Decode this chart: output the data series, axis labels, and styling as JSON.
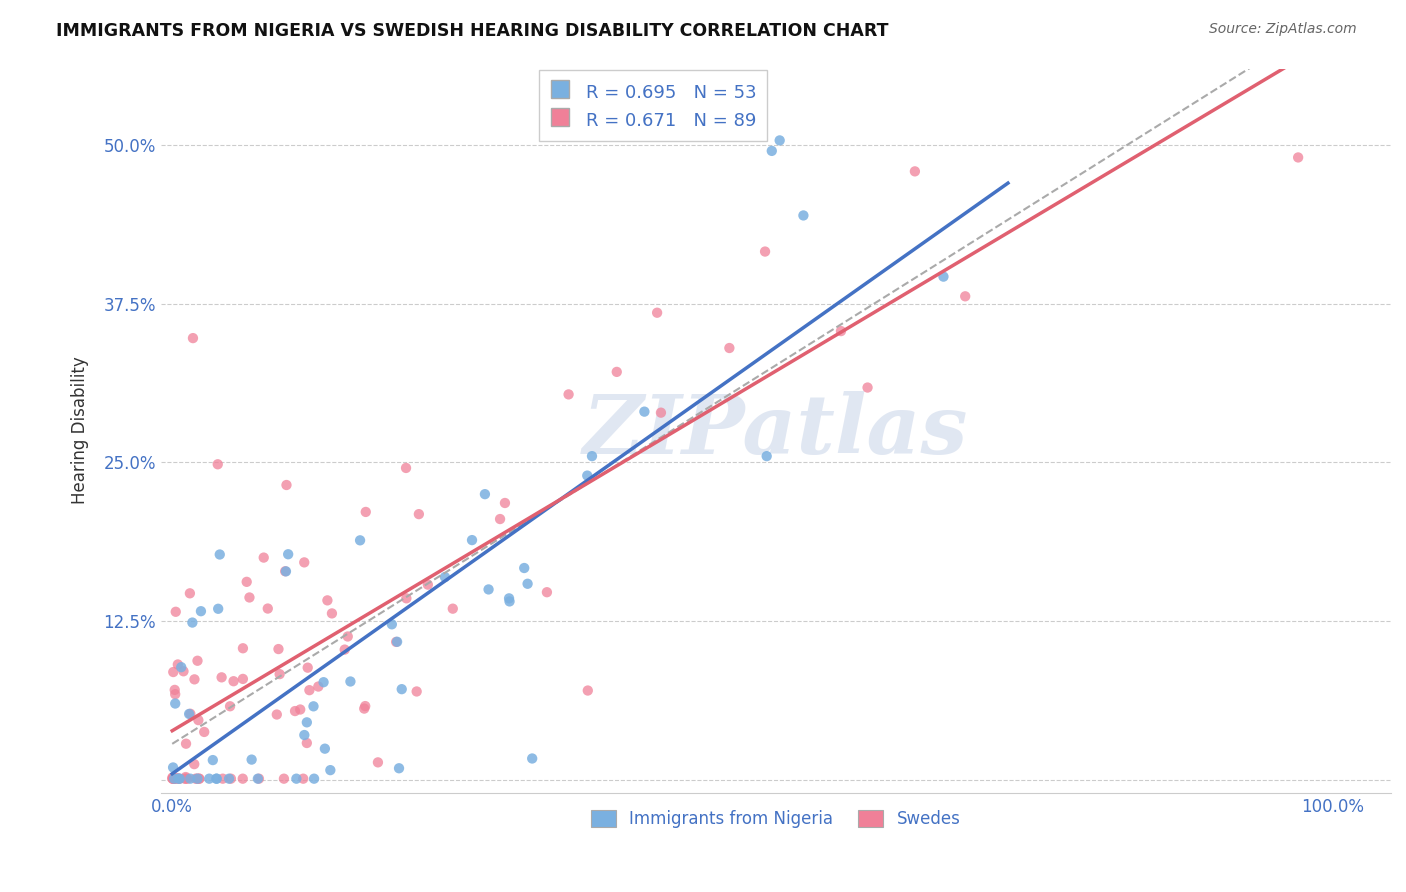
{
  "title": "IMMIGRANTS FROM NIGERIA VS SWEDISH HEARING DISABILITY CORRELATION CHART",
  "source": "Source: ZipAtlas.com",
  "ylabel": "Hearing Disability",
  "watermark": "ZIPatlas",
  "R_nigeria": 0.695,
  "N_nigeria": 53,
  "R_swedes": 0.671,
  "N_swedes": 89,
  "blue_color": "#7ab0e0",
  "pink_color": "#f08098",
  "blue_line_color": "#4472c4",
  "pink_line_color": "#e06070",
  "dash_line_color": "#aaaaaa",
  "title_color": "#111111",
  "axis_label_color": "#4472c4",
  "ylabel_color": "#333333",
  "background_color": "#ffffff",
  "grid_color": "#cccccc",
  "yticks": [
    0.0,
    0.125,
    0.25,
    0.375,
    0.5
  ],
  "ytick_labels": [
    "",
    "12.5%",
    "25.0%",
    "37.5%",
    "50.0%"
  ],
  "xlim": [
    -0.01,
    1.05
  ],
  "ylim": [
    -0.01,
    0.56
  ]
}
